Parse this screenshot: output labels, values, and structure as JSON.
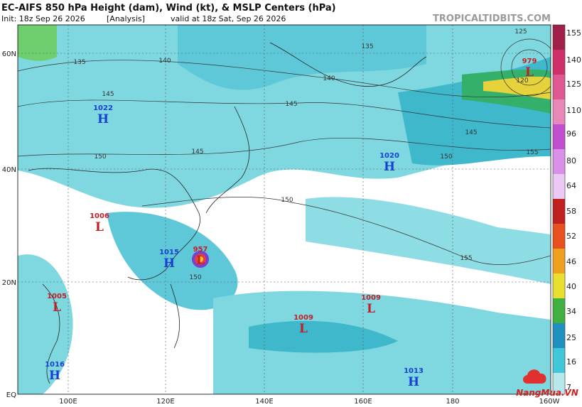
{
  "header": {
    "title": "EC-AIFS 850 hPa Height (dam), Wind (kt), & MSLP Centers (hPa)",
    "init": "Init: 18z Sep 26 2026",
    "tag": "[Analysis]",
    "valid": "valid at 18z Sat, Sep 26 2026",
    "watermark": "TROPICALTIDBITS.COM"
  },
  "latitudes": [
    "60N",
    "40N",
    "20N",
    "EQ"
  ],
  "longitudes": [
    "100E",
    "120E",
    "140E",
    "160E",
    "180",
    "160W"
  ],
  "contour_labels": [
    "135",
    "140",
    "145",
    "150",
    "145",
    "145",
    "140",
    "135",
    "150",
    "150",
    "145",
    "155",
    "155",
    "150",
    "120",
    "125"
  ],
  "centers": [
    {
      "value": "1022",
      "letter": "H"
    },
    {
      "value": "1006",
      "letter": "L"
    },
    {
      "value": "1015",
      "letter": "H"
    },
    {
      "value": "957",
      "letter": "L"
    },
    {
      "value": "1005",
      "letter": "L"
    },
    {
      "value": "1016",
      "letter": "H"
    },
    {
      "value": "1009",
      "letter": "L"
    },
    {
      "value": "1009",
      "letter": "L"
    },
    {
      "value": "1020",
      "letter": "H"
    },
    {
      "value": "1013",
      "letter": "H"
    },
    {
      "value": "979",
      "letter": "L"
    }
  ],
  "colorbar_ticks": [
    "155",
    "140",
    "125",
    "110",
    "96",
    "80",
    "64",
    "58",
    "52",
    "46",
    "40",
    "34",
    "25",
    "16",
    "7"
  ],
  "logo": "NangMua.VN"
}
